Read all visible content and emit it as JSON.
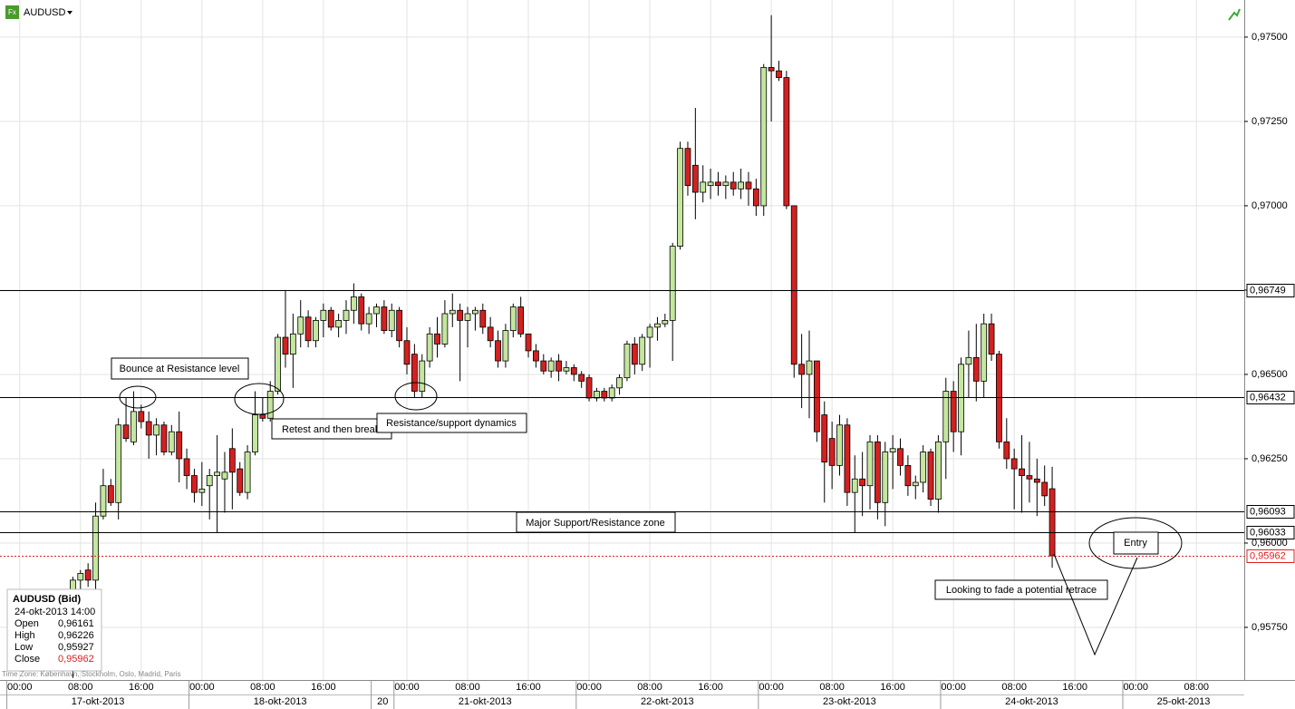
{
  "header": {
    "symbol": "AUDUSD",
    "icon": "Fx"
  },
  "chart_data": {
    "type": "candlestick",
    "xlim": [
      -2.6,
      161.3
    ],
    "ylim": [
      0.95594,
      0.9761
    ],
    "yticks": [
      {
        "value": 0.9575,
        "label": "0,95750"
      },
      {
        "value": 0.96,
        "label": "0,96000"
      },
      {
        "value": 0.9625,
        "label": "0,96250"
      },
      {
        "value": 0.965,
        "label": "0,96500"
      },
      {
        "value": 0.9675,
        "label": "0,96750"
      },
      {
        "value": 0.97,
        "label": "0,97000"
      },
      {
        "value": 0.9725,
        "label": "0,97250"
      },
      {
        "value": 0.975,
        "label": "0,97500"
      }
    ],
    "xticks": [
      {
        "value": 0,
        "label": "00:00"
      },
      {
        "value": 8,
        "label": "08:00"
      },
      {
        "value": 16,
        "label": "16:00"
      },
      {
        "value": 24,
        "label": "00:00"
      },
      {
        "value": 32,
        "label": "08:00"
      },
      {
        "value": 40,
        "label": "16:00"
      },
      {
        "value": 51,
        "label": "00:00"
      },
      {
        "value": 59,
        "label": "08:00"
      },
      {
        "value": 67,
        "label": "16:00"
      },
      {
        "value": 75,
        "label": "00:00"
      },
      {
        "value": 83,
        "label": "08:00"
      },
      {
        "value": 91,
        "label": "16:00"
      },
      {
        "value": 99,
        "label": "00:00"
      },
      {
        "value": 107,
        "label": "08:00"
      },
      {
        "value": 115,
        "label": "16:00"
      },
      {
        "value": 123,
        "label": "00:00"
      },
      {
        "value": 131,
        "label": "08:00"
      },
      {
        "value": 139,
        "label": "16:00"
      },
      {
        "value": 147,
        "label": "00:00"
      },
      {
        "value": 155,
        "label": "08:00"
      }
    ],
    "dayticks": [
      {
        "value": 0,
        "label": "17-okt-2013"
      },
      {
        "value": 24,
        "label": "18-okt-2013"
      },
      {
        "value": 48,
        "label": "20"
      },
      {
        "value": 51,
        "label": "21-okt-2013"
      },
      {
        "value": 75,
        "label": "22-okt-2013"
      },
      {
        "value": 99,
        "label": "23-okt-2013"
      },
      {
        "value": 123,
        "label": "24-okt-2013"
      },
      {
        "value": 147,
        "label": "25-okt-2013"
      }
    ],
    "grid": true,
    "up_color": "#c4e69e",
    "down_color": "#d42020",
    "x": [
      7,
      8,
      9,
      10,
      11,
      12,
      13,
      14,
      15,
      16,
      17,
      18,
      19,
      20,
      21,
      22,
      23,
      24,
      25,
      26,
      27,
      28,
      29,
      30,
      31,
      32,
      33,
      34,
      35,
      36,
      37,
      38,
      39,
      40,
      41,
      42,
      43,
      44,
      45,
      46,
      47,
      48,
      49,
      50,
      51,
      52,
      53,
      54,
      55,
      56,
      57,
      58,
      59,
      60,
      61,
      62,
      63,
      64,
      65,
      66,
      67,
      68,
      69,
      70,
      71,
      72,
      73,
      74,
      75,
      76,
      77,
      78,
      79,
      80,
      81,
      82,
      83,
      84,
      85,
      86,
      87,
      88,
      89,
      90,
      91,
      92,
      93,
      94,
      95,
      96,
      97,
      98,
      99,
      100,
      101,
      102,
      103,
      104,
      105,
      106,
      107,
      108,
      109,
      110,
      111,
      112,
      113,
      114,
      115,
      116,
      117,
      118,
      119,
      120,
      121,
      122,
      123,
      124,
      125,
      126,
      127,
      128,
      129,
      130,
      131,
      132,
      133,
      134,
      135,
      136
    ],
    "ohlc": [
      [
        0.9585,
        0.959,
        0.956,
        0.9589
      ],
      [
        0.9589,
        0.9592,
        0.9585,
        0.9591
      ],
      [
        0.9592,
        0.9594,
        0.9587,
        0.9589
      ],
      [
        0.9589,
        0.9612,
        0.9585,
        0.9608
      ],
      [
        0.9608,
        0.9622,
        0.9607,
        0.9617
      ],
      [
        0.9617,
        0.9619,
        0.9611,
        0.9612
      ],
      [
        0.9612,
        0.9637,
        0.9607,
        0.9635
      ],
      [
        0.9635,
        0.9643,
        0.963,
        0.9631
      ],
      [
        0.963,
        0.9645,
        0.9629,
        0.9639
      ],
      [
        0.9639,
        0.9641,
        0.9634,
        0.9636
      ],
      [
        0.9636,
        0.9639,
        0.9625,
        0.9632
      ],
      [
        0.9632,
        0.9637,
        0.9626,
        0.9635
      ],
      [
        0.9635,
        0.9636,
        0.9626,
        0.9627
      ],
      [
        0.9627,
        0.9635,
        0.9626,
        0.9633
      ],
      [
        0.9633,
        0.9639,
        0.9618,
        0.9625
      ],
      [
        0.9625,
        0.9628,
        0.9616,
        0.962
      ],
      [
        0.962,
        0.9622,
        0.9612,
        0.9615
      ],
      [
        0.9615,
        0.9624,
        0.9611,
        0.9616
      ],
      [
        0.9617,
        0.9622,
        0.9607,
        0.962
      ],
      [
        0.962,
        0.9632,
        0.9603,
        0.9621
      ],
      [
        0.9619,
        0.9627,
        0.9609,
        0.9621
      ],
      [
        0.9628,
        0.9634,
        0.961,
        0.9621
      ],
      [
        0.9622,
        0.9624,
        0.9614,
        0.9615
      ],
      [
        0.9615,
        0.9629,
        0.9613,
        0.9627
      ],
      [
        0.9627,
        0.9645,
        0.9626,
        0.9638
      ],
      [
        0.9638,
        0.9643,
        0.9636,
        0.9637
      ],
      [
        0.9637,
        0.9648,
        0.9636,
        0.9645
      ],
      [
        0.9645,
        0.9662,
        0.9644,
        0.9661
      ],
      [
        0.9661,
        0.9675,
        0.9652,
        0.9656
      ],
      [
        0.9656,
        0.9668,
        0.9646,
        0.9662
      ],
      [
        0.9662,
        0.9672,
        0.9658,
        0.9667
      ],
      [
        0.9667,
        0.9669,
        0.9658,
        0.966
      ],
      [
        0.966,
        0.9667,
        0.9658,
        0.9666
      ],
      [
        0.9666,
        0.9671,
        0.9661,
        0.9669
      ],
      [
        0.9669,
        0.967,
        0.9663,
        0.9664
      ],
      [
        0.9664,
        0.9668,
        0.9661,
        0.9666
      ],
      [
        0.9666,
        0.9672,
        0.9662,
        0.9669
      ],
      [
        0.9669,
        0.9677,
        0.9665,
        0.9673
      ],
      [
        0.9673,
        0.9674,
        0.9663,
        0.9665
      ],
      [
        0.9665,
        0.967,
        0.9662,
        0.9668
      ],
      [
        0.9668,
        0.9671,
        0.9664,
        0.967
      ],
      [
        0.967,
        0.9672,
        0.9662,
        0.9663
      ],
      [
        0.9663,
        0.9671,
        0.9661,
        0.9669
      ],
      [
        0.9669,
        0.967,
        0.9658,
        0.966
      ],
      [
        0.966,
        0.9664,
        0.965,
        0.9653
      ],
      [
        0.9656,
        0.9659,
        0.9643,
        0.9645
      ],
      [
        0.9645,
        0.9656,
        0.9643,
        0.9654
      ],
      [
        0.9654,
        0.9664,
        0.9652,
        0.9662
      ],
      [
        0.9662,
        0.9667,
        0.9655,
        0.9659
      ],
      [
        0.9659,
        0.9672,
        0.9658,
        0.9668
      ],
      [
        0.9668,
        0.9674,
        0.9664,
        0.9669
      ],
      [
        0.9669,
        0.9671,
        0.9648,
        0.9666
      ],
      [
        0.9666,
        0.967,
        0.9658,
        0.9668
      ],
      [
        0.9668,
        0.967,
        0.9663,
        0.9669
      ],
      [
        0.9669,
        0.9671,
        0.9662,
        0.9664
      ],
      [
        0.9664,
        0.9667,
        0.9658,
        0.966
      ],
      [
        0.966,
        0.9663,
        0.9652,
        0.9654
      ],
      [
        0.9654,
        0.9665,
        0.9652,
        0.9663
      ],
      [
        0.9663,
        0.9671,
        0.9661,
        0.967
      ],
      [
        0.967,
        0.9673,
        0.9661,
        0.9662
      ],
      [
        0.9662,
        0.9662,
        0.9655,
        0.9657
      ],
      [
        0.9657,
        0.9659,
        0.9652,
        0.9654
      ],
      [
        0.9654,
        0.9656,
        0.965,
        0.9651
      ],
      [
        0.9651,
        0.9655,
        0.9649,
        0.9654
      ],
      [
        0.9654,
        0.9656,
        0.9648,
        0.9651
      ],
      [
        0.9651,
        0.9654,
        0.965,
        0.9652
      ],
      [
        0.9652,
        0.9653,
        0.9648,
        0.965
      ],
      [
        0.965,
        0.9651,
        0.9646,
        0.9648
      ],
      [
        0.9649,
        0.965,
        0.9642,
        0.9643
      ],
      [
        0.9643,
        0.9646,
        0.9642,
        0.9645
      ],
      [
        0.9645,
        0.9646,
        0.9642,
        0.9643
      ],
      [
        0.9643,
        0.9647,
        0.9642,
        0.9646
      ],
      [
        0.9646,
        0.965,
        0.9644,
        0.9649
      ],
      [
        0.9649,
        0.966,
        0.9648,
        0.9659
      ],
      [
        0.9659,
        0.9661,
        0.965,
        0.9653
      ],
      [
        0.9653,
        0.9662,
        0.9651,
        0.9661
      ],
      [
        0.9661,
        0.9665,
        0.9652,
        0.9664
      ],
      [
        0.9664,
        0.9667,
        0.966,
        0.9665
      ],
      [
        0.9665,
        0.9668,
        0.9664,
        0.9666
      ],
      [
        0.9666,
        0.9689,
        0.9654,
        0.9688
      ],
      [
        0.9688,
        0.9719,
        0.9687,
        0.9717
      ],
      [
        0.9717,
        0.9719,
        0.9703,
        0.9706
      ],
      [
        0.9712,
        0.9729,
        0.9696,
        0.9704
      ],
      [
        0.9704,
        0.9712,
        0.9701,
        0.9707
      ],
      [
        0.9706,
        0.9711,
        0.9702,
        0.9707
      ],
      [
        0.9707,
        0.971,
        0.9703,
        0.9706
      ],
      [
        0.9706,
        0.9709,
        0.9702,
        0.9707
      ],
      [
        0.9707,
        0.971,
        0.9703,
        0.9705
      ],
      [
        0.9705,
        0.9711,
        0.9702,
        0.9707
      ],
      [
        0.9707,
        0.971,
        0.97,
        0.9705
      ],
      [
        0.9705,
        0.9708,
        0.9697,
        0.97
      ],
      [
        0.97,
        0.9742,
        0.9697,
        0.9741
      ],
      [
        0.9741,
        0.97565,
        0.9725,
        0.974
      ],
      [
        0.974,
        0.9743,
        0.9737,
        0.9738
      ],
      [
        0.9738,
        0.974,
        0.9699,
        0.97
      ],
      [
        0.97,
        0.97,
        0.9649,
        0.9653
      ],
      [
        0.9653,
        0.9662,
        0.964,
        0.965
      ],
      [
        0.965,
        0.9663,
        0.9637,
        0.9654
      ],
      [
        0.9654,
        0.9654,
        0.963,
        0.9633
      ],
      [
        0.9638,
        0.9642,
        0.9612,
        0.9624
      ],
      [
        0.9631,
        0.9636,
        0.9616,
        0.9623
      ],
      [
        0.9623,
        0.9638,
        0.962,
        0.9635
      ],
      [
        0.9635,
        0.9637,
        0.9611,
        0.9615
      ],
      [
        0.9615,
        0.9626,
        0.9603,
        0.9619
      ],
      [
        0.9619,
        0.9627,
        0.9608,
        0.9617
      ],
      [
        0.9617,
        0.9632,
        0.961,
        0.963
      ],
      [
        0.963,
        0.9632,
        0.9607,
        0.9612
      ],
      [
        0.9612,
        0.963,
        0.9605,
        0.9627
      ],
      [
        0.9627,
        0.9632,
        0.9616,
        0.9628
      ],
      [
        0.9628,
        0.9631,
        0.962,
        0.9623
      ],
      [
        0.9623,
        0.9626,
        0.9614,
        0.9617
      ],
      [
        0.9617,
        0.962,
        0.9613,
        0.9618
      ],
      [
        0.9618,
        0.9629,
        0.9615,
        0.9627
      ],
      [
        0.9627,
        0.9628,
        0.9611,
        0.9613
      ],
      [
        0.9613,
        0.9632,
        0.9609,
        0.963
      ],
      [
        0.963,
        0.9649,
        0.9619,
        0.9645
      ],
      [
        0.9645,
        0.9648,
        0.9627,
        0.9633
      ],
      [
        0.9633,
        0.9655,
        0.9626,
        0.9653
      ],
      [
        0.9653,
        0.9663,
        0.9643,
        0.9655
      ],
      [
        0.9655,
        0.9665,
        0.9642,
        0.9648
      ],
      [
        0.9648,
        0.9668,
        0.9643,
        0.9665
      ],
      [
        0.9665,
        0.9668,
        0.9654,
        0.9656
      ],
      [
        0.9656,
        0.9657,
        0.9628,
        0.963
      ],
      [
        0.963,
        0.9637,
        0.9622,
        0.9625
      ],
      [
        0.9625,
        0.9628,
        0.961,
        0.9622
      ],
      [
        0.9622,
        0.9632,
        0.9609,
        0.962
      ],
      [
        0.962,
        0.963,
        0.9612,
        0.9619
      ],
      [
        0.9619,
        0.9625,
        0.9608,
        0.9618
      ],
      [
        0.9618,
        0.9623,
        0.9611,
        0.9614
      ],
      [
        0.96161,
        0.96226,
        0.95927,
        0.95962
      ]
    ],
    "levels": [
      {
        "value": 0.96749,
        "label": "0,96749"
      },
      {
        "value": 0.96432,
        "label": "0,96432"
      },
      {
        "value": 0.96093,
        "label": "0,96093"
      },
      {
        "value": 0.96033,
        "label": "0,96033"
      }
    ],
    "last_price": {
      "value": 0.95962,
      "label": "0,95962"
    },
    "annotations": [
      "Bounce at Resistance level",
      "Retest and then break",
      "Resistance/support dynamics",
      "Major Support/Resistance zone",
      "Looking to fade a potential retrace",
      "Entry"
    ],
    "time_zone": "Time Zone: København, Stockholm, Oslo, Madrid, Paris"
  },
  "info_box": {
    "title": "AUDUSD (Bid)",
    "datetime": "24-okt-2013 14:00",
    "rows": [
      [
        "Open",
        "0,96161"
      ],
      [
        "High",
        "0,96226"
      ],
      [
        "Low",
        "0,95927"
      ],
      [
        "Close",
        "0,95962"
      ]
    ]
  }
}
